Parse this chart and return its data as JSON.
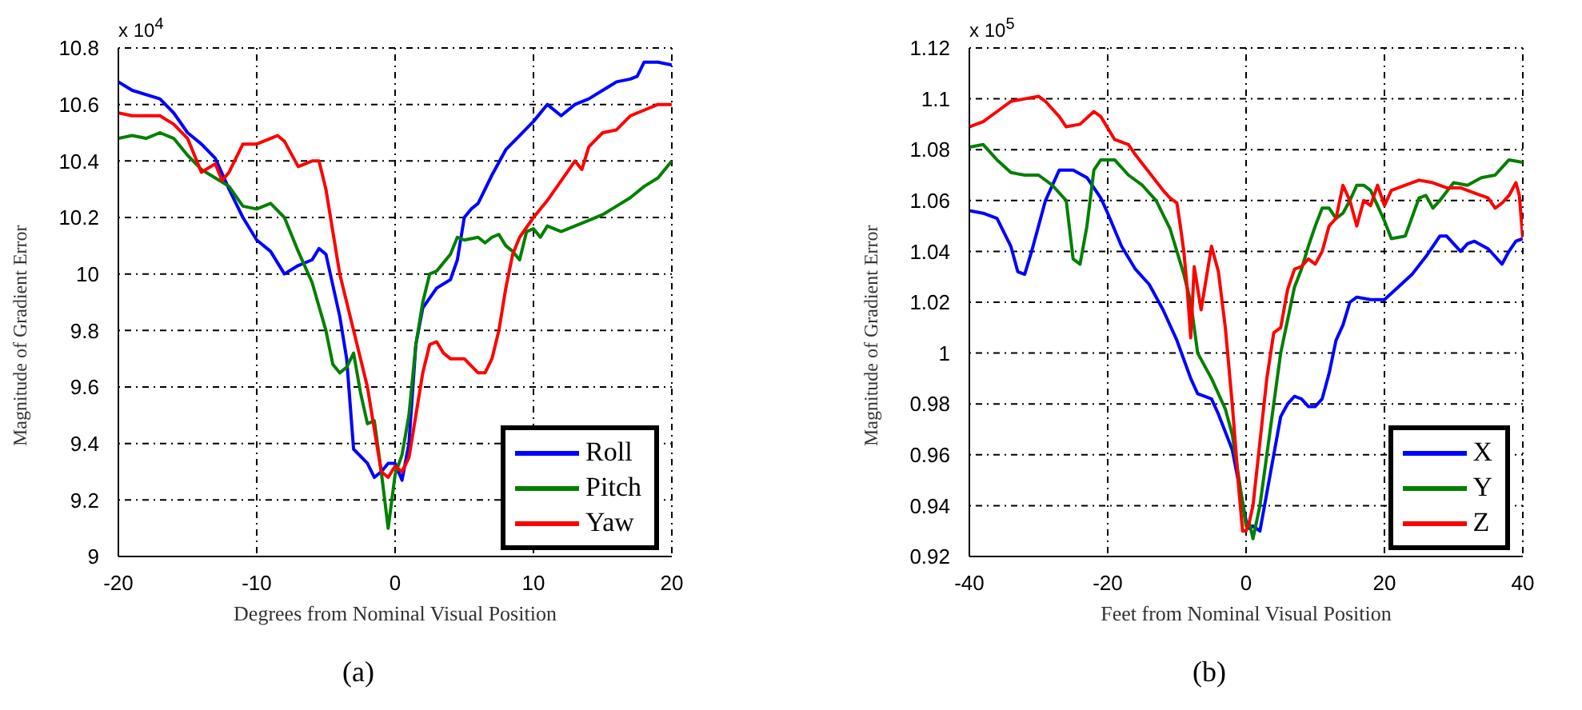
{
  "chart_data": [
    {
      "type": "line",
      "xlabel": "Degrees from Nominal Visual Position",
      "ylabel": "Magnitude of Gradient Error",
      "annotations": [
        "x 10$^{4}$",
        "(a)"
      ],
      "xlim": [
        -20,
        20
      ],
      "xticks": [
        -20,
        -10,
        0,
        10,
        20
      ],
      "ylim": [
        9,
        10.8
      ],
      "yticks": [
        9,
        9.2,
        9.4,
        9.6,
        9.8,
        10,
        10.2,
        10.4,
        10.6,
        10.8
      ],
      "grid": true,
      "legend": "bottom right",
      "series": [
        {
          "name": "Roll",
          "color": "#0000ff",
          "x": [
            -20,
            -19,
            -17,
            -16,
            -15,
            -14,
            -13,
            -12,
            -11,
            -10,
            -9,
            -8,
            -7,
            -6,
            -5.5,
            -5,
            -4,
            -3.5,
            -3,
            -2,
            -1.5,
            -1,
            -0.5,
            0,
            0.5,
            1,
            1.5,
            2,
            3,
            4,
            4.5,
            5,
            5.5,
            6,
            7,
            8,
            9,
            10,
            11,
            12,
            13,
            14,
            15,
            16,
            17,
            17.5,
            18,
            19,
            20
          ],
          "values": [
            10.68,
            10.65,
            10.62,
            10.57,
            10.5,
            10.46,
            10.41,
            10.3,
            10.2,
            10.12,
            10.08,
            10.0,
            10.03,
            10.05,
            10.09,
            10.07,
            9.85,
            9.7,
            9.38,
            9.33,
            9.28,
            9.3,
            9.33,
            9.33,
            9.27,
            9.4,
            9.75,
            9.88,
            9.95,
            9.98,
            10.05,
            10.2,
            10.23,
            10.25,
            10.35,
            10.44,
            10.49,
            10.54,
            10.6,
            10.56,
            10.6,
            10.62,
            10.65,
            10.68,
            10.69,
            10.7,
            10.75,
            10.75,
            10.74
          ]
        },
        {
          "name": "Pitch",
          "color": "#008000",
          "x": [
            -20,
            -19,
            -18,
            -17,
            -16,
            -15,
            -14,
            -13,
            -12,
            -11,
            -10,
            -9,
            -8,
            -7,
            -6,
            -5,
            -4.5,
            -4,
            -3.5,
            -3,
            -2.5,
            -2,
            -1.5,
            -1,
            -0.5,
            0,
            0.5,
            1,
            1.5,
            2,
            2.5,
            3,
            4,
            4.5,
            5,
            6,
            6.5,
            7,
            7.5,
            8,
            8.5,
            9,
            9.5,
            10,
            10.5,
            11,
            12,
            13,
            14,
            15,
            16,
            17,
            18,
            19,
            20
          ],
          "values": [
            10.48,
            10.49,
            10.48,
            10.5,
            10.48,
            10.42,
            10.37,
            10.34,
            10.31,
            10.24,
            10.23,
            10.25,
            10.2,
            10.08,
            9.97,
            9.8,
            9.68,
            9.65,
            9.67,
            9.72,
            9.58,
            9.47,
            9.48,
            9.3,
            9.1,
            9.29,
            9.36,
            9.5,
            9.75,
            9.9,
            10.0,
            10.01,
            10.07,
            10.13,
            10.12,
            10.13,
            10.11,
            10.13,
            10.14,
            10.1,
            10.08,
            10.05,
            10.15,
            10.16,
            10.13,
            10.17,
            10.15,
            10.17,
            10.19,
            10.21,
            10.24,
            10.27,
            10.31,
            10.34,
            10.4
          ]
        },
        {
          "name": "Yaw",
          "color": "#ff0000",
          "x": [
            -20,
            -19,
            -17,
            -16,
            -15,
            -14,
            -13,
            -12.5,
            -12,
            -11,
            -10,
            -9,
            -8.5,
            -8,
            -7,
            -6,
            -5.5,
            -5,
            -4,
            -3,
            -2,
            -1.5,
            -1,
            -0.5,
            0,
            0.5,
            1,
            1.5,
            2,
            2.5,
            3,
            3.5,
            4,
            5,
            6,
            6.5,
            7,
            7.5,
            8,
            8.5,
            9,
            10,
            11,
            12,
            13,
            13.5,
            14,
            15,
            16,
            17,
            18,
            19,
            20
          ],
          "values": [
            10.57,
            10.56,
            10.56,
            10.53,
            10.48,
            10.36,
            10.39,
            10.33,
            10.36,
            10.46,
            10.46,
            10.48,
            10.49,
            10.47,
            10.38,
            10.4,
            10.4,
            10.3,
            10.0,
            9.8,
            9.6,
            9.45,
            9.3,
            9.28,
            9.32,
            9.3,
            9.35,
            9.5,
            9.65,
            9.75,
            9.76,
            9.72,
            9.7,
            9.7,
            9.65,
            9.65,
            9.7,
            9.8,
            9.95,
            10.07,
            10.13,
            10.2,
            10.26,
            10.33,
            10.4,
            10.37,
            10.45,
            10.5,
            10.51,
            10.56,
            10.58,
            10.6,
            10.6
          ]
        }
      ]
    },
    {
      "type": "line",
      "xlabel": "Feet from Nominal Visual Position",
      "ylabel": "Magnitude of Gradient Error",
      "annotations": [
        "x 10$^{5}$",
        "(b)"
      ],
      "xlim": [
        -40,
        40
      ],
      "xticks": [
        -40,
        -20,
        0,
        20,
        40
      ],
      "ylim": [
        0.92,
        1.12
      ],
      "yticks": [
        0.92,
        0.94,
        0.96,
        0.98,
        1,
        1.02,
        1.04,
        1.06,
        1.08,
        1.1,
        1.12
      ],
      "grid": true,
      "legend": "bottom right",
      "series": [
        {
          "name": "X",
          "color": "#0000ff",
          "x": [
            -40,
            -38,
            -36,
            -34,
            -33,
            -32,
            -31,
            -29,
            -27,
            -25,
            -23,
            -21,
            -20,
            -18,
            -16,
            -14,
            -12,
            -10,
            -8,
            -7,
            -5,
            -4,
            -2,
            -1,
            0,
            0.5,
            1,
            2,
            3,
            4,
            5,
            6,
            7,
            8,
            9,
            10,
            11,
            12,
            13,
            14,
            15,
            16,
            18,
            20,
            22,
            24,
            26,
            28,
            29,
            30,
            31,
            32,
            33,
            35,
            37,
            38,
            39,
            40
          ],
          "values": [
            1.056,
            1.055,
            1.053,
            1.042,
            1.032,
            1.031,
            1.04,
            1.06,
            1.072,
            1.072,
            1.069,
            1.061,
            1.055,
            1.042,
            1.033,
            1.027,
            1.017,
            1.005,
            0.99,
            0.984,
            0.982,
            0.976,
            0.962,
            0.948,
            0.934,
            0.931,
            0.932,
            0.93,
            0.945,
            0.96,
            0.975,
            0.98,
            0.983,
            0.982,
            0.979,
            0.979,
            0.982,
            0.992,
            1.005,
            1.011,
            1.02,
            1.022,
            1.021,
            1.021,
            1.026,
            1.031,
            1.038,
            1.046,
            1.046,
            1.043,
            1.04,
            1.043,
            1.044,
            1.041,
            1.035,
            1.04,
            1.044,
            1.045
          ]
        },
        {
          "name": "Y",
          "color": "#008000",
          "x": [
            -40,
            -38,
            -36,
            -34,
            -32,
            -30,
            -28,
            -26,
            -25,
            -24,
            -23,
            -22,
            -21,
            -19,
            -17,
            -15,
            -13,
            -11,
            -9,
            -8,
            -7,
            -5,
            -3,
            -2,
            -1,
            0,
            0.5,
            1,
            2,
            3,
            4,
            5,
            6,
            7,
            8,
            9,
            10,
            11,
            12,
            13,
            14,
            15,
            16,
            17,
            18,
            19,
            20,
            21,
            23,
            25,
            26,
            27,
            28,
            30,
            32,
            34,
            36,
            37,
            38,
            40
          ],
          "values": [
            1.081,
            1.082,
            1.076,
            1.071,
            1.07,
            1.07,
            1.066,
            1.06,
            1.037,
            1.035,
            1.05,
            1.072,
            1.076,
            1.076,
            1.07,
            1.066,
            1.06,
            1.049,
            1.031,
            1.02,
            1.0,
            0.99,
            0.978,
            0.968,
            0.95,
            0.932,
            0.933,
            0.927,
            0.94,
            0.96,
            0.98,
            1.0,
            1.013,
            1.026,
            1.033,
            1.042,
            1.05,
            1.057,
            1.057,
            1.053,
            1.055,
            1.06,
            1.066,
            1.066,
            1.064,
            1.058,
            1.052,
            1.045,
            1.046,
            1.061,
            1.062,
            1.057,
            1.06,
            1.067,
            1.066,
            1.069,
            1.07,
            1.073,
            1.076,
            1.075
          ]
        },
        {
          "name": "Z",
          "color": "#ff0000",
          "x": [
            -40,
            -38,
            -36,
            -34,
            -32,
            -30,
            -29,
            -27,
            -26,
            -24,
            -22,
            -21,
            -19,
            -17,
            -16,
            -14,
            -12,
            -11,
            -10,
            -9.5,
            -9,
            -8.5,
            -8,
            -7.5,
            -6.5,
            -5,
            -4,
            -3,
            -2,
            -1,
            -0.5,
            0,
            0.5,
            1,
            2,
            3,
            4,
            5,
            6,
            7,
            8,
            9,
            10,
            11,
            12,
            13,
            14,
            15,
            16,
            17,
            18,
            19,
            20,
            21,
            23,
            25,
            27,
            29,
            31,
            33,
            35,
            36,
            37,
            38,
            39,
            39.5,
            40
          ],
          "values": [
            1.089,
            1.091,
            1.095,
            1.099,
            1.1,
            1.101,
            1.099,
            1.093,
            1.089,
            1.09,
            1.095,
            1.093,
            1.084,
            1.082,
            1.078,
            1.071,
            1.064,
            1.061,
            1.059,
            1.05,
            1.04,
            1.025,
            1.006,
            1.034,
            1.017,
            1.042,
            1.032,
            1.01,
            0.98,
            0.945,
            0.93,
            0.93,
            0.934,
            0.94,
            0.965,
            0.99,
            1.008,
            1.01,
            1.025,
            1.033,
            1.034,
            1.037,
            1.035,
            1.04,
            1.05,
            1.053,
            1.066,
            1.06,
            1.05,
            1.06,
            1.058,
            1.066,
            1.058,
            1.064,
            1.066,
            1.068,
            1.067,
            1.065,
            1.065,
            1.063,
            1.061,
            1.057,
            1.059,
            1.062,
            1.067,
            1.062,
            1.045
          ]
        }
      ]
    }
  ]
}
